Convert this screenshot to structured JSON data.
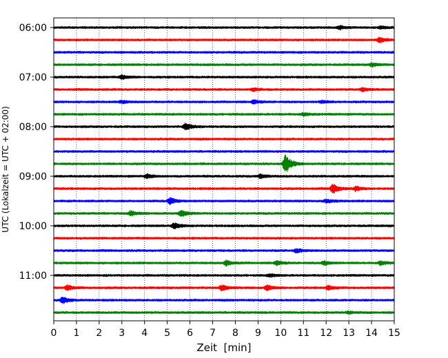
{
  "chart_data": {
    "type": "line",
    "subtype": "helicorder",
    "xlabel": "Zeit  [min]",
    "ylabel": "UTC (Lokalzeit = UTC + 02:00)",
    "xlim": [
      0,
      15
    ],
    "x_ticks": [
      0,
      1,
      2,
      3,
      4,
      5,
      6,
      7,
      8,
      9,
      10,
      11,
      12,
      13,
      14,
      15
    ],
    "y_tick_labels": [
      "06:00",
      "07:00",
      "08:00",
      "09:00",
      "10:00",
      "11:00"
    ],
    "trace_interval_min": 15,
    "grid": "vertical dotted at each minute",
    "trace_colors": [
      "#000000",
      "#ff0000",
      "#0000ff",
      "#008000"
    ],
    "traces": [
      {
        "start": "06:00",
        "color": "#000000",
        "events": [
          {
            "t": 12.6,
            "amp": 2.5
          },
          {
            "t": 14.4,
            "amp": 2
          }
        ]
      },
      {
        "start": "06:15",
        "color": "#ff0000",
        "events": [
          {
            "t": 14.35,
            "amp": 4
          }
        ]
      },
      {
        "start": "06:30",
        "color": "#0000ff",
        "events": []
      },
      {
        "start": "06:45",
        "color": "#008000",
        "events": [
          {
            "t": 14.0,
            "amp": 2.5
          }
        ]
      },
      {
        "start": "07:00",
        "color": "#000000",
        "events": [
          {
            "t": 3.0,
            "amp": 2.5
          }
        ]
      },
      {
        "start": "07:15",
        "color": "#ff0000",
        "events": [
          {
            "t": 8.8,
            "amp": 2
          },
          {
            "t": 13.6,
            "amp": 2.5
          }
        ]
      },
      {
        "start": "07:30",
        "color": "#0000ff",
        "events": [
          {
            "t": 3.0,
            "amp": 2
          },
          {
            "t": 8.8,
            "amp": 2.5
          },
          {
            "t": 11.8,
            "amp": 2
          }
        ]
      },
      {
        "start": "07:45",
        "color": "#008000",
        "events": [
          {
            "t": 11.0,
            "amp": 2
          }
        ]
      },
      {
        "start": "08:00",
        "color": "#000000",
        "events": [
          {
            "t": 5.8,
            "amp": 5
          }
        ]
      },
      {
        "start": "08:15",
        "color": "#ff0000",
        "events": []
      },
      {
        "start": "08:30",
        "color": "#0000ff",
        "events": []
      },
      {
        "start": "08:45",
        "color": "#008000",
        "events": [
          {
            "t": 10.2,
            "amp": 14
          }
        ]
      },
      {
        "start": "09:00",
        "color": "#000000",
        "events": [
          {
            "t": 4.1,
            "amp": 3
          },
          {
            "t": 9.1,
            "amp": 2.5
          }
        ]
      },
      {
        "start": "09:15",
        "color": "#ff0000",
        "events": [
          {
            "t": 12.3,
            "amp": 7
          },
          {
            "t": 13.3,
            "amp": 3
          }
        ]
      },
      {
        "start": "09:30",
        "color": "#0000ff",
        "events": [
          {
            "t": 5.1,
            "amp": 5
          },
          {
            "t": 12.0,
            "amp": 3
          }
        ]
      },
      {
        "start": "09:45",
        "color": "#008000",
        "events": [
          {
            "t": 3.4,
            "amp": 3.5
          },
          {
            "t": 5.6,
            "amp": 5
          }
        ]
      },
      {
        "start": "10:00",
        "color": "#000000",
        "events": [
          {
            "t": 5.3,
            "amp": 4.5
          }
        ]
      },
      {
        "start": "10:15",
        "color": "#ff0000",
        "events": []
      },
      {
        "start": "10:30",
        "color": "#0000ff",
        "events": [
          {
            "t": 10.7,
            "amp": 3
          }
        ]
      },
      {
        "start": "10:45",
        "color": "#008000",
        "events": [
          {
            "t": 7.6,
            "amp": 3.5
          },
          {
            "t": 9.8,
            "amp": 3
          },
          {
            "t": 11.9,
            "amp": 3
          },
          {
            "t": 14.4,
            "amp": 2.5
          }
        ]
      },
      {
        "start": "11:00",
        "color": "#000000",
        "events": [
          {
            "t": 9.5,
            "amp": 2
          }
        ]
      },
      {
        "start": "11:15",
        "color": "#ff0000",
        "events": [
          {
            "t": 0.6,
            "amp": 4
          },
          {
            "t": 7.4,
            "amp": 4
          },
          {
            "t": 9.4,
            "amp": 3.5
          },
          {
            "t": 12.1,
            "amp": 3
          }
        ]
      },
      {
        "start": "11:30",
        "color": "#0000ff",
        "events": [
          {
            "t": 0.4,
            "amp": 4.5
          }
        ]
      },
      {
        "start": "11:45",
        "color": "#008000",
        "events": [
          {
            "t": 13.0,
            "amp": 1.5
          }
        ]
      }
    ]
  }
}
